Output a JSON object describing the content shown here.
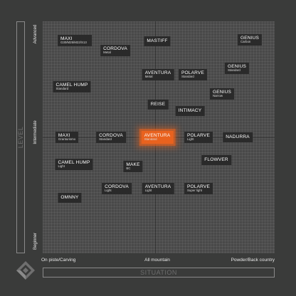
{
  "y_axis": {
    "title": "LEVEL",
    "ticks": [
      "Advanced",
      "Intermediate",
      "Beginner"
    ]
  },
  "x_axis": {
    "title": "SITUATION",
    "ticks": [
      "On piste/Carving",
      "All mountain",
      "Powder/Back country"
    ]
  },
  "colors": {
    "highlight": "#e9621e",
    "node": "#2a2a2a",
    "plot": "#494949"
  },
  "nodes": [
    {
      "id": "maxi-adv",
      "name": "MAXI",
      "sub": "G30/M25/M22/S13"
    },
    {
      "id": "cordova-metal",
      "name": "CORDOVA",
      "sub": "Metal"
    },
    {
      "id": "mastiff",
      "name": "MASTIFF",
      "sub": ""
    },
    {
      "id": "genius-carbon",
      "name": "GENIUS",
      "sub": "Carbon"
    },
    {
      "id": "genius-standard",
      "name": "GENIUS",
      "sub": "Standard"
    },
    {
      "id": "aventura-metal",
      "name": "AVENTURA",
      "sub": "Metal"
    },
    {
      "id": "polarve-standard",
      "name": "POLARVE",
      "sub": "Standard"
    },
    {
      "id": "camel-hump-standard",
      "name": "CAMEL HUMP",
      "sub": "Standard"
    },
    {
      "id": "genius-narrow",
      "name": "GENIUS",
      "sub": "Narrow"
    },
    {
      "id": "reise",
      "name": "REISE",
      "sub": ""
    },
    {
      "id": "intimacy",
      "name": "INTIMACY",
      "sub": ""
    },
    {
      "id": "maxi-granturismo",
      "name": "MAXI",
      "sub": "Granturismo"
    },
    {
      "id": "cordova-standard",
      "name": "CORDOVA",
      "sub": "Standard"
    },
    {
      "id": "aventura-standard",
      "name": "AVENTURA",
      "sub": "Standard"
    },
    {
      "id": "polarve-light",
      "name": "POLARVE",
      "sub": "Light"
    },
    {
      "id": "nadurra",
      "name": "NADURRA",
      "sub": ""
    },
    {
      "id": "flowver",
      "name": "FLOWVER",
      "sub": ""
    },
    {
      "id": "camel-hump-light",
      "name": "CAMEL HUMP",
      "sub": "Light"
    },
    {
      "id": "make-bc",
      "name": "MAKE",
      "sub": "BC"
    },
    {
      "id": "cordova-light",
      "name": "CORDOVA",
      "sub": "Light"
    },
    {
      "id": "aventura-light",
      "name": "AVENTURA",
      "sub": "Light"
    },
    {
      "id": "polarve-super-light",
      "name": "POLARVE",
      "sub": "Super light"
    },
    {
      "id": "omnny",
      "name": "OMNNY",
      "sub": ""
    }
  ]
}
